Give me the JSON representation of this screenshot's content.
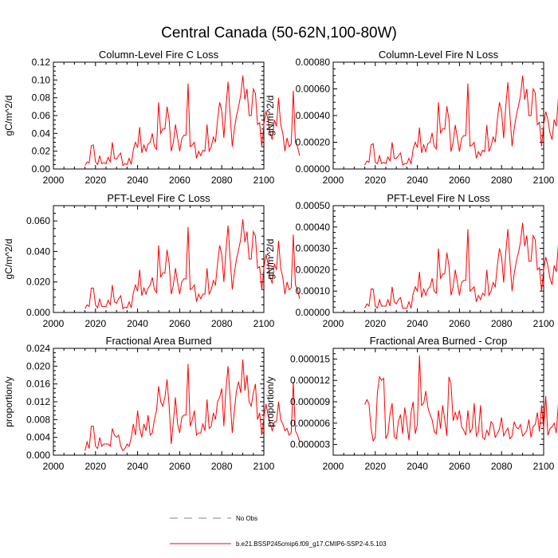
{
  "figure": {
    "title": "Central Canada (50-62N,100-80W)",
    "legend": [
      {
        "label": "No Obs",
        "color": "#7f7fbf",
        "style": "dashed"
      },
      {
        "label": "b.e21.BSSP245cmip6.f09_g17.CMIP6-SSP2-4.5.103",
        "color": "#ff0000",
        "style": "solid"
      }
    ]
  },
  "chart_data": [
    {
      "type": "line",
      "title": "Column-Level Fire C Loss",
      "ylabel": "gC/m^2/d",
      "xlim": [
        2000,
        2100
      ],
      "ylim": [
        0,
        0.12
      ],
      "xticks": [
        "2000",
        "2020",
        "2040",
        "2060",
        "2080",
        "2100"
      ],
      "yticks": [
        "0.00",
        "0.02",
        "0.04",
        "0.06",
        "0.08",
        "0.10",
        "0.12"
      ],
      "color": "#ff0000",
      "x_start": 2015,
      "values": [
        0.004,
        0.008,
        0.007,
        0.026,
        0.027,
        0.008,
        0.005,
        0.015,
        0.006,
        0.007,
        0.006,
        0.013,
        0.008,
        0.03,
        0.012,
        0.011,
        0.015,
        0.018,
        0.004,
        0.006,
        0.005,
        0.012,
        0.005,
        0.022,
        0.03,
        0.024,
        0.047,
        0.018,
        0.027,
        0.02,
        0.028,
        0.03,
        0.04,
        0.025,
        0.022,
        0.075,
        0.04,
        0.045,
        0.045,
        0.07,
        0.055,
        0.02,
        0.03,
        0.05,
        0.035,
        0.02,
        0.034,
        0.038,
        0.038,
        0.096,
        0.025,
        0.027,
        0.03,
        0.012,
        0.02,
        0.015,
        0.021,
        0.02,
        0.05,
        0.02,
        0.025,
        0.036,
        0.03,
        0.055,
        0.075,
        0.065,
        0.035,
        0.07,
        0.098,
        0.06,
        0.025,
        0.045,
        0.06,
        0.07,
        0.083,
        0.105,
        0.078,
        0.09,
        0.06,
        0.06,
        0.09,
        0.085,
        0.05,
        0.052,
        0.025,
        0.05,
        0.065,
        0.055,
        0.04,
        0.033,
        0.055,
        0.048,
        0.08,
        0.05,
        0.04,
        0.02,
        0.035,
        0.025,
        0.028,
        0.088,
        0.03,
        0.025,
        0.015
      ]
    },
    {
      "type": "line",
      "title": "Column-Level Fire N Loss",
      "ylabel": "gN/m^2/d",
      "xlim": [
        2000,
        2100
      ],
      "ylim": [
        0,
        0.0008
      ],
      "xticks": [
        "2000",
        "2020",
        "2040",
        "2060",
        "2080",
        "2100"
      ],
      "yticks": [
        "0.00000",
        "0.00020",
        "0.00040",
        "0.00060",
        "0.00080"
      ],
      "color": "#ff0000",
      "x_start": 2015,
      "values": [
        3e-05,
        6e-05,
        5e-05,
        0.00018,
        0.00019,
        5e-05,
        4e-05,
        0.0001,
        4e-05,
        5e-05,
        4e-05,
        9e-05,
        6e-05,
        0.0002,
        8e-05,
        8e-05,
        0.0001,
        0.00012,
        3e-05,
        4e-05,
        4e-05,
        8e-05,
        4e-05,
        0.00015,
        0.0002,
        0.00016,
        0.00031,
        0.00012,
        0.00018,
        0.00013,
        0.00019,
        0.0002,
        0.00027,
        0.00017,
        0.00015,
        0.0005,
        0.00027,
        0.0003,
        0.0003,
        0.00047,
        0.00037,
        0.00013,
        0.0002,
        0.00033,
        0.00023,
        0.00013,
        0.00023,
        0.00025,
        0.00025,
        0.00064,
        0.00017,
        0.00018,
        0.0002,
        8e-05,
        0.00013,
        0.0001,
        0.00014,
        0.00013,
        0.00033,
        0.00013,
        0.00017,
        0.00024,
        0.0002,
        0.00037,
        0.0005,
        0.00043,
        0.00023,
        0.00047,
        0.00065,
        0.0004,
        0.00017,
        0.0003,
        0.0004,
        0.00047,
        0.00055,
        0.0007,
        0.00052,
        0.0006,
        0.0004,
        0.0004,
        0.0006,
        0.00057,
        0.00033,
        0.00035,
        0.00017,
        0.00033,
        0.00043,
        0.00037,
        0.00027,
        0.00022,
        0.00037,
        0.00032,
        0.00053,
        0.00033,
        0.00027,
        0.00013,
        0.00023,
        0.00017,
        0.00019,
        0.00059,
        0.0002,
        0.00017,
        0.0001
      ]
    },
    {
      "type": "line",
      "title": "PFT-Level Fire C Loss",
      "ylabel": "gC/m^2/d",
      "xlim": [
        2000,
        2100
      ],
      "ylim": [
        0,
        0.07
      ],
      "xticks": [
        "2000",
        "2020",
        "2040",
        "2060",
        "2080",
        "2100"
      ],
      "yticks": [
        "0.000",
        "0.020",
        "0.040",
        "0.060"
      ],
      "color": "#ff0000",
      "x_start": 2015,
      "values": [
        0.0025,
        0.005,
        0.004,
        0.016,
        0.016,
        0.005,
        0.003,
        0.009,
        0.004,
        0.004,
        0.004,
        0.008,
        0.005,
        0.018,
        0.007,
        0.006,
        0.009,
        0.011,
        0.0025,
        0.0035,
        0.003,
        0.007,
        0.003,
        0.013,
        0.018,
        0.014,
        0.028,
        0.011,
        0.016,
        0.012,
        0.016,
        0.018,
        0.023,
        0.015,
        0.013,
        0.044,
        0.023,
        0.026,
        0.026,
        0.041,
        0.032,
        0.012,
        0.018,
        0.029,
        0.02,
        0.012,
        0.02,
        0.022,
        0.022,
        0.056,
        0.015,
        0.016,
        0.018,
        0.007,
        0.012,
        0.009,
        0.012,
        0.012,
        0.029,
        0.012,
        0.015,
        0.021,
        0.018,
        0.032,
        0.044,
        0.038,
        0.02,
        0.041,
        0.057,
        0.035,
        0.015,
        0.026,
        0.035,
        0.041,
        0.048,
        0.061,
        0.046,
        0.053,
        0.035,
        0.035,
        0.053,
        0.05,
        0.029,
        0.03,
        0.015,
        0.029,
        0.038,
        0.032,
        0.023,
        0.019,
        0.032,
        0.028,
        0.047,
        0.029,
        0.023,
        0.012,
        0.02,
        0.015,
        0.016,
        0.051,
        0.018,
        0.015,
        0.009
      ]
    },
    {
      "type": "line",
      "title": "PFT-Level Fire N Loss",
      "ylabel": "gN/m^2/d",
      "xlim": [
        2000,
        2100
      ],
      "ylim": [
        0,
        0.0005
      ],
      "xticks": [
        "2000",
        "2020",
        "2040",
        "2060",
        "2080",
        "2100"
      ],
      "yticks": [
        "0.00000",
        "0.00010",
        "0.00020",
        "0.00030",
        "0.00040",
        "0.00050"
      ],
      "color": "#ff0000",
      "x_start": 2015,
      "values": [
        2e-05,
        4e-05,
        3e-05,
        0.00011,
        0.00011,
        3e-05,
        2e-05,
        6e-05,
        3e-05,
        3e-05,
        3e-05,
        6e-05,
        3e-05,
        0.00012,
        5e-05,
        4e-05,
        6e-05,
        7e-05,
        2e-05,
        2e-05,
        2e-05,
        5e-05,
        2e-05,
        9e-05,
        0.00012,
        0.0001,
        0.00019,
        7e-05,
        0.00011,
        8e-05,
        0.00011,
        0.00012,
        0.00016,
        0.0001,
        9e-05,
        0.0003,
        0.00016,
        0.00018,
        0.00018,
        0.00028,
        0.00022,
        8e-05,
        0.00012,
        0.0002,
        0.00014,
        8e-05,
        0.00014,
        0.00015,
        0.00015,
        0.00039,
        0.0001,
        0.00011,
        0.00012,
        5e-05,
        8e-05,
        6e-05,
        9e-05,
        8e-05,
        0.0002,
        8e-05,
        0.0001,
        0.00014,
        0.00012,
        0.00022,
        0.0003,
        0.00026,
        0.00014,
        0.00028,
        0.00039,
        0.00024,
        0.0001,
        0.00018,
        0.00024,
        0.00028,
        0.00033,
        0.00042,
        0.00031,
        0.00036,
        0.00024,
        0.00024,
        0.00036,
        0.00034,
        0.0002,
        0.00021,
        0.0001,
        0.0002,
        0.00026,
        0.00022,
        0.00016,
        0.00013,
        0.00022,
        0.00019,
        0.00032,
        0.0002,
        0.00016,
        8e-05,
        0.00014,
        0.0001,
        0.00011,
        0.00035,
        0.00012,
        0.0001,
        6e-05
      ]
    },
    {
      "type": "line",
      "title": "Fractional Area Burned",
      "ylabel": "proportion/y",
      "xlim": [
        2000,
        2100
      ],
      "ylim": [
        0,
        0.024
      ],
      "xticks": [
        "2000",
        "2020",
        "2040",
        "2060",
        "2080",
        "2100"
      ],
      "yticks": [
        "0.000",
        "0.004",
        "0.008",
        "0.012",
        "0.016",
        "0.020",
        "0.024"
      ],
      "color": "#ff0000",
      "x_start": 2015,
      "values": [
        0.001,
        0.003,
        0.0015,
        0.0065,
        0.0065,
        0.002,
        0.0015,
        0.004,
        0.002,
        0.0025,
        0.0025,
        0.0025,
        0.002,
        0.006,
        0.0045,
        0.004,
        0.0045,
        0.002,
        0.001,
        0.0015,
        0.0025,
        0.002,
        0.004,
        0.007,
        0.0045,
        0.01,
        0.006,
        0.004,
        0.007,
        0.0055,
        0.009,
        0.0045,
        0.005,
        0.008,
        0.01,
        0.0155,
        0.012,
        0.011,
        0.013,
        0.017,
        0.011,
        0.0025,
        0.0075,
        0.013,
        0.007,
        0.005,
        0.0085,
        0.009,
        0.009,
        0.0205,
        0.0065,
        0.008,
        0.01,
        0.0045,
        0.005,
        0.005,
        0.007,
        0.0055,
        0.0125,
        0.006,
        0.0065,
        0.0095,
        0.008,
        0.012,
        0.013,
        0.015,
        0.0065,
        0.015,
        0.02,
        0.0125,
        0.005,
        0.01,
        0.0145,
        0.0165,
        0.014,
        0.0215,
        0.0145,
        0.018,
        0.012,
        0.011,
        0.014,
        0.016,
        0.008,
        0.0095,
        0.0045,
        0.0085,
        0.0115,
        0.009,
        0.007,
        0.0055,
        0.0075,
        0.0075,
        0.012,
        0.008,
        0.007,
        0.0055,
        0.006,
        0.0045,
        0.005,
        0.0165,
        0.0055,
        0.0045,
        0.003
      ]
    },
    {
      "type": "line",
      "title": "Fractional Area Burned - Crop",
      "ylabel": "proportion/y",
      "xlim": [
        2000,
        2100
      ],
      "ylim": [
        1.5e-06,
        1.65e-05
      ],
      "xticks": [
        "2000",
        "2020",
        "2040",
        "2060",
        "2080",
        "2100"
      ],
      "yticks": [
        "0.000003",
        "0.000006",
        "0.000009",
        "0.000012",
        "0.000015"
      ],
      "color": "#ff0000",
      "x_start": 2015,
      "values": [
        8.6e-06,
        9.3e-06,
        8.7e-06,
        5.3e-06,
        3.5e-06,
        4e-06,
        1.03e-05,
        1.25e-05,
        1.2e-05,
        1.23e-05,
        3.8e-06,
        4.5e-06,
        7.3e-06,
        8.8e-06,
        4.1e-06,
        3.8e-06,
        6.3e-06,
        7.2e-06,
        4.5e-06,
        8.2e-06,
        6e-06,
        3.6e-06,
        7.5e-06,
        9e-06,
        4.5e-06,
        5.8e-06,
        1.55e-05,
        8.5e-06,
        8.8e-06,
        1.05e-05,
        8.2e-06,
        7.2e-06,
        6.5e-06,
        4.8e-06,
        4.5e-06,
        7.8e-06,
        5.2e-06,
        8.5e-06,
        6.5e-06,
        4.2e-06,
        1.25e-05,
        1.15e-05,
        6.3e-06,
        7.5e-06,
        6.5e-06,
        7.8e-06,
        5.5e-06,
        5e-06,
        4.3e-06,
        7.8e-06,
        4.7e-06,
        5.2e-06,
        8.8e-06,
        4.2e-06,
        4.8e-06,
        8.5e-06,
        4e-06,
        3.7e-06,
        5e-06,
        4.3e-06,
        6.2e-06,
        5.8e-06,
        4e-06,
        4.5e-06,
        5.2e-06,
        6.8e-06,
        4.2e-06,
        4.8e-06,
        5.3e-06,
        3.8e-06,
        4.2e-06,
        6.2e-06,
        5.4e-06,
        5.2e-06,
        5.8e-06,
        4.2e-06,
        4.5e-06,
        5e-06,
        6.5e-06,
        4e-06,
        5.5e-06,
        5.8e-06,
        7.5e-06,
        4.8e-06,
        8.5e-06,
        5.2e-06,
        9.8e-06,
        4.3e-06,
        5.2e-06,
        5.5e-06,
        6e-06,
        4.6e-06,
        8.8e-06,
        6.8e-06,
        3.5e-06,
        5e-06,
        1.25e-05,
        6.8e-06,
        1.28e-05,
        7e-06,
        4.5e-06,
        1.12e-05,
        6e-06
      ]
    }
  ]
}
